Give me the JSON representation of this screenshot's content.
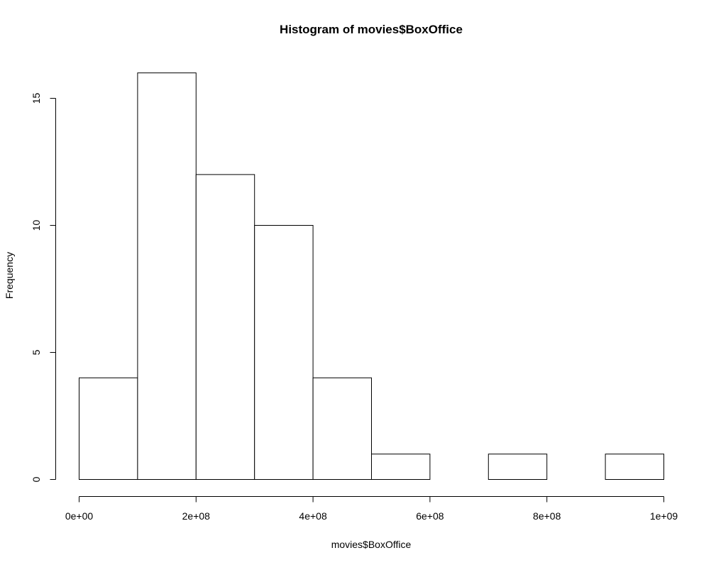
{
  "chart_data": {
    "type": "bar",
    "title": "Histogram of movies$BoxOffice",
    "xlabel": "movies$BoxOffice",
    "ylabel": "Frequency",
    "bins": [
      {
        "from": 0,
        "to": 100000000,
        "count": 4
      },
      {
        "from": 100000000,
        "to": 200000000,
        "count": 16
      },
      {
        "from": 200000000,
        "to": 300000000,
        "count": 12
      },
      {
        "from": 300000000,
        "to": 400000000,
        "count": 10
      },
      {
        "from": 400000000,
        "to": 500000000,
        "count": 4
      },
      {
        "from": 500000000,
        "to": 600000000,
        "count": 1
      },
      {
        "from": 600000000,
        "to": 700000000,
        "count": 0
      },
      {
        "from": 700000000,
        "to": 800000000,
        "count": 1
      },
      {
        "from": 800000000,
        "to": 900000000,
        "count": 0
      },
      {
        "from": 900000000,
        "to": 1000000000,
        "count": 1
      }
    ],
    "xlim": [
      0,
      1000000000
    ],
    "ylim": [
      0,
      16
    ],
    "x_ticks": [
      {
        "value": 0,
        "label": "0e+00"
      },
      {
        "value": 200000000,
        "label": "2e+08"
      },
      {
        "value": 400000000,
        "label": "4e+08"
      },
      {
        "value": 600000000,
        "label": "6e+08"
      },
      {
        "value": 800000000,
        "label": "8e+08"
      },
      {
        "value": 1000000000,
        "label": "1e+09"
      }
    ],
    "y_ticks": [
      {
        "value": 0,
        "label": "0"
      },
      {
        "value": 5,
        "label": "5"
      },
      {
        "value": 10,
        "label": "10"
      },
      {
        "value": 15,
        "label": "15"
      }
    ],
    "grid": false,
    "legend": "none"
  }
}
